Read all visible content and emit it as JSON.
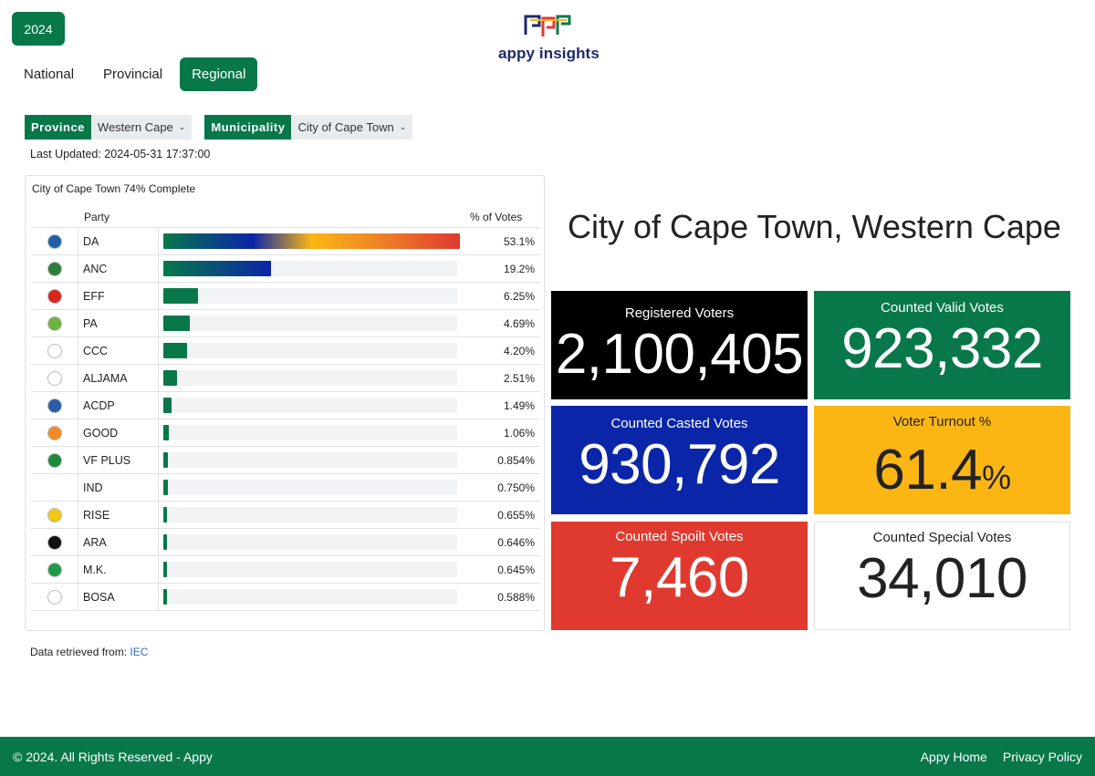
{
  "year_button": "2024",
  "brand": {
    "name": "appy insights",
    "colors": [
      "#1d2a6b",
      "#08784a",
      "#e03a30",
      "#fbb614"
    ]
  },
  "tabs": [
    {
      "label": "National",
      "active": false
    },
    {
      "label": "Provincial",
      "active": false
    },
    {
      "label": "Regional",
      "active": true
    }
  ],
  "filters": {
    "province_label": "Province",
    "province_value": "Western Cape",
    "municipality_label": "Municipality",
    "municipality_value": "City of Cape Town"
  },
  "last_updated": "Last Updated: 2024-05-31 17:37:00",
  "results": {
    "title": "City of Cape Town 74% Complete",
    "col_party": "Party",
    "col_pct": "% of Votes",
    "rows": [
      {
        "party": "DA",
        "pct": "53.1%",
        "value": 53.1,
        "logo_color": "#1e5fa8"
      },
      {
        "party": "ANC",
        "pct": "19.2%",
        "value": 19.2,
        "logo_color": "#2f7d3a"
      },
      {
        "party": "EFF",
        "pct": "6.25%",
        "value": 6.25,
        "logo_color": "#d7261e"
      },
      {
        "party": "PA",
        "pct": "4.69%",
        "value": 4.69,
        "logo_color": "#6cb33f"
      },
      {
        "party": "CCC",
        "pct": "4.20%",
        "value": 4.2,
        "logo_color": "#ffffff"
      },
      {
        "party": "ALJAMA",
        "pct": "2.51%",
        "value": 2.51,
        "logo_color": "#ffffff"
      },
      {
        "party": "ACDP",
        "pct": "1.49%",
        "value": 1.49,
        "logo_color": "#2a5ca8"
      },
      {
        "party": "GOOD",
        "pct": "1.06%",
        "value": 1.06,
        "logo_color": "#f08a24"
      },
      {
        "party": "VF PLUS",
        "pct": "0.854%",
        "value": 0.854,
        "logo_color": "#1f8a3c"
      },
      {
        "party": "IND",
        "pct": "0.750%",
        "value": 0.75,
        "logo_color": ""
      },
      {
        "party": "RISE",
        "pct": "0.655%",
        "value": 0.655,
        "logo_color": "#f3c614"
      },
      {
        "party": "ARA",
        "pct": "0.646%",
        "value": 0.646,
        "logo_color": "#111111"
      },
      {
        "party": "M.K.",
        "pct": "0.645%",
        "value": 0.645,
        "logo_color": "#1f9a48"
      },
      {
        "party": "BOSA",
        "pct": "0.588%",
        "value": 0.588,
        "logo_color": "#ffffff"
      }
    ]
  },
  "source": {
    "label": "Data retrieved from:",
    "link": "IEC"
  },
  "region_title": "City of Cape Town, Western Cape",
  "stats": {
    "registered": {
      "label": "Registered Voters",
      "value": "2,100,405"
    },
    "valid": {
      "label": "Counted Valid Votes",
      "value": "923,332"
    },
    "casted": {
      "label": "Counted Casted Votes",
      "value": "930,792"
    },
    "turnout": {
      "label": "Voter Turnout %",
      "value": "61.4",
      "unit": "%"
    },
    "spoilt": {
      "label": "Counted Spoilt Votes",
      "value": "7,460"
    },
    "special": {
      "label": "Counted Special Votes",
      "value": "34,010"
    }
  },
  "footer": {
    "copyright": "© 2024. All Rights Reserved - Appy",
    "links": [
      "Appy Home",
      "Privacy Policy"
    ]
  }
}
